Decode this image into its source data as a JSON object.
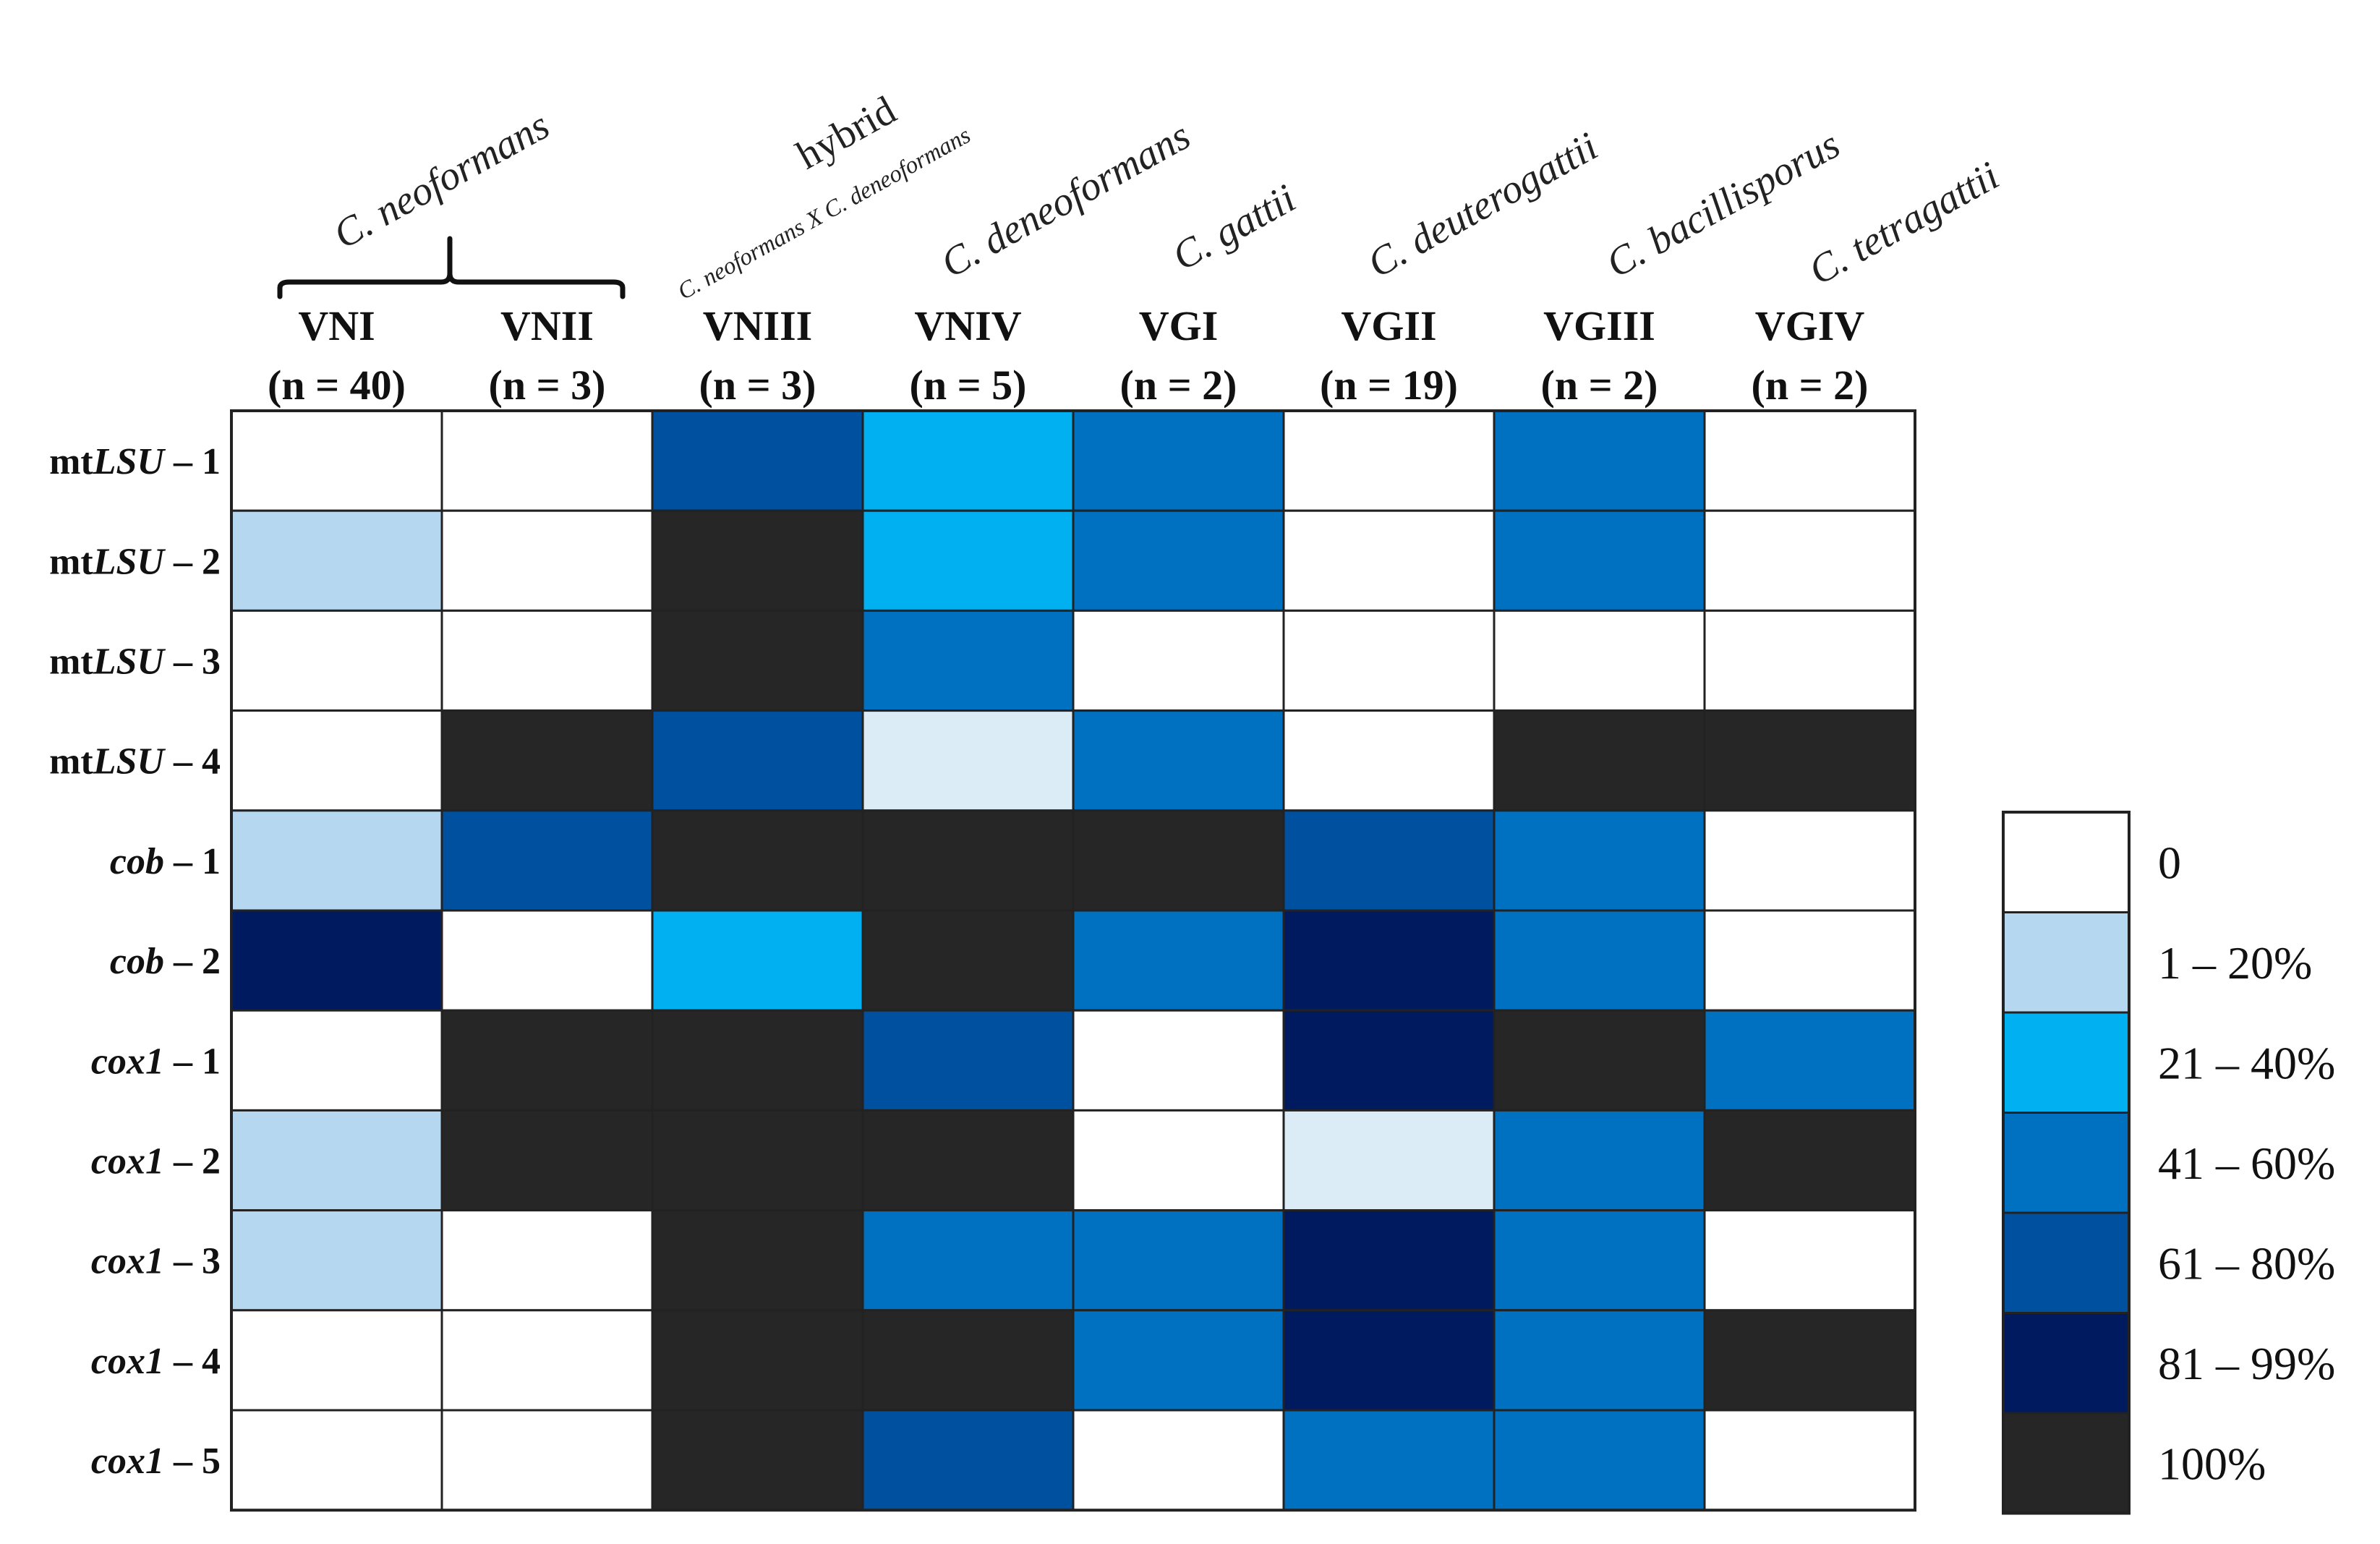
{
  "chart_data": {
    "type": "heatmap",
    "species_groups": [
      {
        "name": "C. neoformans",
        "columns": [
          "VNI",
          "VNII"
        ]
      },
      {
        "name": "hybrid",
        "subname": "C. neoformans X C. deneoformans",
        "columns": [
          "VNIII"
        ]
      },
      {
        "name": "C. deneoformans",
        "columns": [
          "VNIV"
        ]
      },
      {
        "name": "C. gattii",
        "columns": [
          "VGI"
        ]
      },
      {
        "name": "C. deuterogattii",
        "columns": [
          "VGII"
        ]
      },
      {
        "name": "C. bacillisporus",
        "columns": [
          "VGIII"
        ]
      },
      {
        "name": "C. tetragattii",
        "columns": [
          "VGIV"
        ]
      }
    ],
    "columns": [
      {
        "name": "VNI",
        "n": "(n = 40)"
      },
      {
        "name": "VNII",
        "n": "(n = 3)"
      },
      {
        "name": "VNIII",
        "n": "(n = 3)"
      },
      {
        "name": "VNIV",
        "n": "(n = 5)"
      },
      {
        "name": "VGI",
        "n": "(n = 2)"
      },
      {
        "name": "VGII",
        "n": "(n = 19)"
      },
      {
        "name": "VGIII",
        "n": "(n = 2)"
      },
      {
        "name": "VGIV",
        "n": "(n = 2)"
      }
    ],
    "rows": [
      {
        "prefix": "mt",
        "gene": "LSU",
        "suffix": " – 1",
        "italic_prefix": false
      },
      {
        "prefix": "mt",
        "gene": "LSU",
        "suffix": " – 2",
        "italic_prefix": false
      },
      {
        "prefix": "mt",
        "gene": "LSU",
        "suffix": " – 3",
        "italic_prefix": false
      },
      {
        "prefix": "mt",
        "gene": "LSU",
        "suffix": " – 4",
        "italic_prefix": false
      },
      {
        "prefix": "",
        "gene": "cob",
        "suffix": " – 1",
        "italic_prefix": false
      },
      {
        "prefix": "",
        "gene": "cob",
        "suffix": " – 2",
        "italic_prefix": false
      },
      {
        "prefix": "",
        "gene": "cox1",
        "suffix": " – 1",
        "italic_prefix": false
      },
      {
        "prefix": "",
        "gene": "cox1",
        "suffix": " – 2",
        "italic_prefix": false
      },
      {
        "prefix": "",
        "gene": "cox1",
        "suffix": " – 3",
        "italic_prefix": false
      },
      {
        "prefix": "",
        "gene": "cox1",
        "suffix": " – 4",
        "italic_prefix": false
      },
      {
        "prefix": "",
        "gene": "cox1",
        "suffix": " – 5",
        "italic_prefix": false
      }
    ],
    "legend": [
      {
        "label": "0",
        "color": "#ffffff"
      },
      {
        "label": "1 – 20%",
        "color": "#b5d8f0"
      },
      {
        "label": "21 – 40%",
        "color": "#00b0f0"
      },
      {
        "label": "41 – 60%",
        "color": "#0070c0"
      },
      {
        "label": "61 – 80%",
        "color": "#0050a0"
      },
      {
        "label": "81 – 99%",
        "color": "#001a60"
      },
      {
        "label": "100%",
        "color": "#262626"
      }
    ],
    "extra_colors": {
      "very_light": "#dbecf7"
    },
    "cells": [
      [
        "0",
        "0",
        "61 – 80%",
        "21 – 40%",
        "41 – 60%",
        "0",
        "41 – 60%",
        "0"
      ],
      [
        "1 – 20%",
        "0",
        "100%",
        "21 – 40%",
        "41 – 60%",
        "0",
        "41 – 60%",
        "0"
      ],
      [
        "0",
        "0",
        "100%",
        "41 – 60%",
        "0",
        "0",
        "0",
        "0"
      ],
      [
        "0",
        "100%",
        "61 – 80%",
        "very_light",
        "41 – 60%",
        "0",
        "100%",
        "100%"
      ],
      [
        "1 – 20%",
        "61 – 80%",
        "100%",
        "100%",
        "100%",
        "61 – 80%",
        "41 – 60%",
        "0"
      ],
      [
        "81 – 99%",
        "0",
        "21 – 40%",
        "100%",
        "41 – 60%",
        "81 – 99%",
        "41 – 60%",
        "0"
      ],
      [
        "0",
        "100%",
        "100%",
        "61 – 80%",
        "0",
        "81 – 99%",
        "100%",
        "41 – 60%"
      ],
      [
        "1 – 20%",
        "100%",
        "100%",
        "100%",
        "0",
        "very_light",
        "41 – 60%",
        "100%"
      ],
      [
        "1 – 20%",
        "0",
        "100%",
        "41 – 60%",
        "41 – 60%",
        "81 – 99%",
        "41 – 60%",
        "0"
      ],
      [
        "0",
        "0",
        "100%",
        "100%",
        "41 – 60%",
        "81 – 99%",
        "41 – 60%",
        "100%"
      ],
      [
        "0",
        "0",
        "100%",
        "61 – 80%",
        "0",
        "41 – 60%",
        "41 – 60%",
        "0"
      ]
    ]
  }
}
